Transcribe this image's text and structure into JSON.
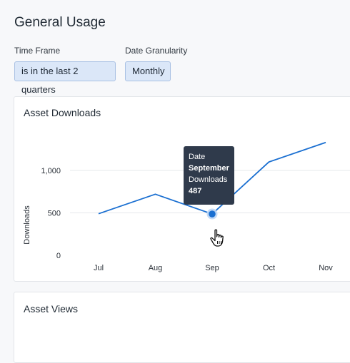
{
  "page": {
    "title": "General Usage"
  },
  "filters": {
    "time_frame": {
      "label": "Time Frame",
      "value": "is in the last 2 quarters"
    },
    "granularity": {
      "label": "Date Granularity",
      "value": "Monthly"
    }
  },
  "downloads_card": {
    "title": "Asset Downloads",
    "tooltip": {
      "date_label": "Date",
      "date_value": "September",
      "metric_label": "Downloads",
      "metric_value": "487"
    }
  },
  "views_card": {
    "title": "Asset Views"
  },
  "colors": {
    "line": "#1a6fd1",
    "tooltip_bg": "#2f3a4b",
    "pill_bg": "#dbe7f8"
  },
  "icons": {
    "cursor": "hand-pointer-icon"
  },
  "chart_data": {
    "type": "line",
    "title": "Asset Downloads",
    "xlabel": "",
    "ylabel": "Downloads",
    "categories": [
      "Jul",
      "Aug",
      "Sep",
      "Oct",
      "Nov"
    ],
    "series": [
      {
        "values": [
          490,
          720,
          487,
          1100,
          1330
        ]
      }
    ],
    "yticks": [
      0,
      500,
      1000
    ],
    "ytick_labels": [
      "0",
      "500",
      "1,000"
    ],
    "ylim": [
      0,
      1330
    ],
    "grid": true,
    "highlight": {
      "category": "Sep",
      "value": 487
    }
  }
}
